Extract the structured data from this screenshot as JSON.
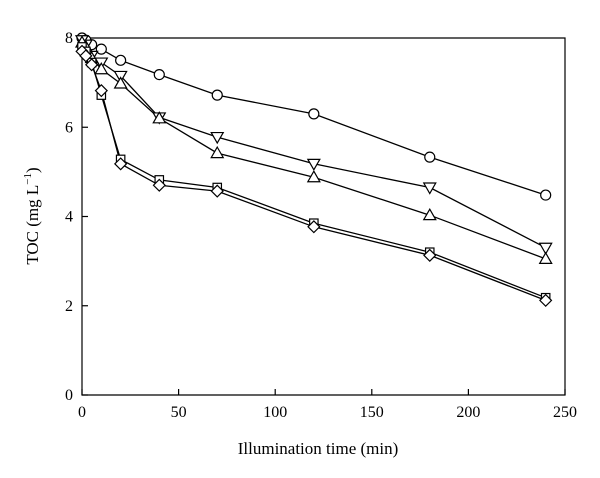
{
  "chart_data": {
    "type": "line",
    "title": "",
    "xlabel": "Illumination time (min)",
    "ylabel_main": "TOC (mg L",
    "ylabel_sup": "−1",
    "ylabel_close": ")",
    "xlim": [
      0,
      250
    ],
    "ylim": [
      0,
      8
    ],
    "xticks": [
      0,
      50,
      100,
      150,
      200,
      250
    ],
    "yticks": [
      0,
      2,
      4,
      6,
      8
    ],
    "grid": false,
    "legend": "none",
    "series": [
      {
        "marker": "circle",
        "x": [
          0,
          2,
          5,
          10,
          20,
          40,
          70,
          120,
          180,
          240
        ],
        "y": [
          8.0,
          7.95,
          7.85,
          7.75,
          7.5,
          7.18,
          6.72,
          6.3,
          5.33,
          4.48
        ]
      },
      {
        "marker": "triangle-down",
        "x": [
          0,
          2,
          5,
          10,
          20,
          40,
          70,
          120,
          180,
          240
        ],
        "y": [
          7.95,
          7.85,
          7.6,
          7.45,
          7.15,
          6.22,
          5.78,
          5.18,
          4.65,
          3.3
        ]
      },
      {
        "marker": "triangle-up",
        "x": [
          0,
          2,
          5,
          10,
          20,
          40,
          70,
          120,
          180,
          240
        ],
        "y": [
          7.9,
          7.8,
          7.55,
          7.3,
          6.98,
          6.2,
          5.42,
          4.88,
          4.03,
          3.05
        ]
      },
      {
        "marker": "square",
        "x": [
          0,
          2,
          5,
          10,
          20,
          40,
          70,
          120,
          180,
          240
        ],
        "y": [
          7.8,
          7.7,
          7.45,
          6.72,
          5.28,
          4.82,
          4.65,
          3.85,
          3.2,
          2.18
        ]
      },
      {
        "marker": "diamond",
        "x": [
          0,
          2,
          5,
          10,
          20,
          40,
          70,
          120,
          180,
          240
        ],
        "y": [
          7.7,
          7.6,
          7.4,
          6.82,
          5.18,
          4.7,
          4.57,
          3.77,
          3.13,
          2.12
        ]
      }
    ]
  }
}
